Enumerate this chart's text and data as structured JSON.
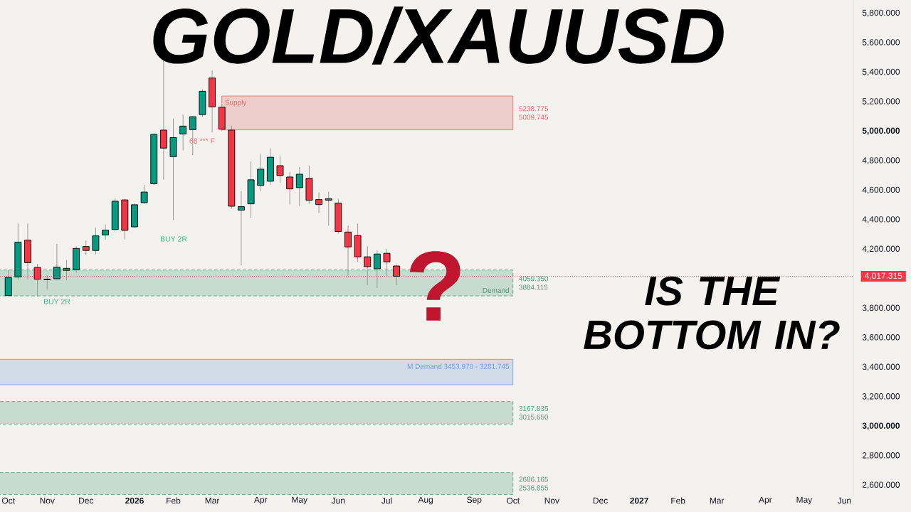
{
  "chart_data": {
    "type": "candlestick",
    "title": "GOLD/XAUUSD",
    "subtitle": "IS THE BOTTOM IN?",
    "x": [
      "2025-10-06",
      "2025-10-13",
      "2025-10-20",
      "2025-10-27",
      "2025-11-03",
      "2025-11-10",
      "2025-11-17",
      "2025-11-24",
      "2025-12-01",
      "2025-12-08",
      "2025-12-15",
      "2025-12-22",
      "2025-12-29",
      "2026-01-05",
      "2026-01-12",
      "2026-01-19",
      "2026-01-26",
      "2026-02-02",
      "2026-02-09",
      "2026-02-16",
      "2026-02-23",
      "2026-03-02",
      "2026-03-09",
      "2026-03-16",
      "2026-03-23",
      "2026-03-30",
      "2026-04-06",
      "2026-04-13",
      "2026-04-20",
      "2026-04-27",
      "2026-05-04",
      "2026-05-11",
      "2026-05-18",
      "2026-05-25",
      "2026-06-01",
      "2026-06-08",
      "2026-06-15",
      "2026-06-22",
      "2026-06-29",
      "2026-07-06",
      "2026-07-13"
    ],
    "ohlc": [
      [
        3886,
        4059,
        3884,
        4009
      ],
      [
        4012,
        4375,
        3992,
        4248
      ],
      [
        4262,
        4375,
        3997,
        4109
      ],
      [
        4077,
        4101,
        3881,
        3997
      ],
      [
        3997,
        4024,
        3925,
        3993
      ],
      [
        4000,
        4237,
        3997,
        4079
      ],
      [
        4071,
        4128,
        3992,
        4057
      ],
      [
        4061,
        4221,
        4040,
        4206
      ],
      [
        4219,
        4259,
        4160,
        4192
      ],
      [
        4192,
        4347,
        4165,
        4291
      ],
      [
        4297,
        4368,
        4264,
        4330
      ],
      [
        4334,
        4543,
        4326,
        4526
      ],
      [
        4535,
        4543,
        4267,
        4328
      ],
      [
        4352,
        4511,
        4345,
        4502
      ],
      [
        4516,
        4637,
        4508,
        4588
      ],
      [
        4644,
        4988,
        4637,
        4979
      ],
      [
        5008,
        5595,
        4672,
        4886
      ],
      [
        4828,
        5086,
        4398,
        4957
      ],
      [
        4982,
        5113,
        4871,
        5035
      ],
      [
        5011,
        5103,
        4839,
        5099
      ],
      [
        5113,
        5284,
        5097,
        5271
      ],
      [
        5361,
        5413,
        4993,
        5166
      ],
      [
        5163,
        5163,
        5001,
        5014
      ],
      [
        5008,
        5038,
        4475,
        4492
      ],
      [
        4465,
        4594,
        4091,
        4489
      ],
      [
        4508,
        4795,
        4412,
        4671
      ],
      [
        4633,
        4848,
        4594,
        4743
      ],
      [
        4661,
        4886,
        4637,
        4824
      ],
      [
        4767,
        4829,
        4652,
        4700
      ],
      [
        4690,
        4724,
        4503,
        4609
      ],
      [
        4618,
        4757,
        4494,
        4709
      ],
      [
        4681,
        4767,
        4508,
        4532
      ],
      [
        4537,
        4585,
        4446,
        4503
      ],
      [
        4542,
        4590,
        4360,
        4532
      ],
      [
        4513,
        4542,
        4307,
        4321
      ],
      [
        4317,
        4360,
        4020,
        4216
      ],
      [
        4293,
        4374,
        4115,
        4149
      ],
      [
        4149,
        4221,
        3957,
        4082
      ],
      [
        4068,
        4192,
        3938,
        4168
      ],
      [
        4173,
        4202,
        4015,
        4115
      ],
      [
        4087,
        4096,
        3957,
        4017.315
      ]
    ],
    "colors": [
      "#089981",
      "#089981",
      "#f23645",
      "#f23645",
      "#f23645",
      "#089981",
      "#f23645",
      "#089981",
      "#f23645",
      "#089981",
      "#089981",
      "#089981",
      "#f23645",
      "#089981",
      "#089981",
      "#089981",
      "#f23645",
      "#089981",
      "#089981",
      "#089981",
      "#089981",
      "#f23645",
      "#f23645",
      "#f23645",
      "#089981",
      "#089981",
      "#089981",
      "#089981",
      "#f23645",
      "#f23645",
      "#089981",
      "#f23645",
      "#f23645",
      "#f23645",
      "#f23645",
      "#f23645",
      "#f23645",
      "#f23645",
      "#089981",
      "#f23645",
      "#f23645"
    ],
    "xlim": [
      "2025-09-30",
      "2027-06-08"
    ],
    "xticks": [
      {
        "value": "2025-10-06",
        "label": "Oct"
      },
      {
        "value": "2025-11-03",
        "label": "Nov"
      },
      {
        "value": "2025-12-01",
        "label": "Dec"
      },
      {
        "value": "2026-01-05",
        "label": "2026"
      },
      {
        "value": "2026-02-02",
        "label": "Feb"
      },
      {
        "value": "2026-03-02",
        "label": "Mar"
      },
      {
        "value": "2026-04-06",
        "label": "Apr"
      },
      {
        "value": "2026-05-04",
        "label": "May"
      },
      {
        "value": "2026-06-01",
        "label": "Jun"
      },
      {
        "value": "2026-07-06",
        "label": "Jul"
      },
      {
        "value": "2026-08-03",
        "label": "Aug"
      },
      {
        "value": "2026-09-07",
        "label": "Sep"
      },
      {
        "value": "2026-10-05",
        "label": "Oct"
      },
      {
        "value": "2026-11-02",
        "label": "Nov"
      },
      {
        "value": "2026-12-07",
        "label": "Dec"
      },
      {
        "value": "2027-01-04",
        "label": "2027"
      },
      {
        "value": "2027-02-01",
        "label": "Feb"
      },
      {
        "value": "2027-03-01",
        "label": "Mar"
      },
      {
        "value": "2027-04-05",
        "label": "Apr"
      },
      {
        "value": "2027-05-03",
        "label": "May"
      },
      {
        "value": "2027-06-01",
        "label": "Jun"
      }
    ],
    "ylim": [
      2530,
      5890
    ],
    "yticks": [
      {
        "value": 5800,
        "label": "5,800.000"
      },
      {
        "value": 5600,
        "label": "5,600.000"
      },
      {
        "value": 5400,
        "label": "5,400.000"
      },
      {
        "value": 5200,
        "label": "5,200.000"
      },
      {
        "value": 5000,
        "label": "5,000.000"
      },
      {
        "value": 4800,
        "label": "4,800.000"
      },
      {
        "value": 4600,
        "label": "4,600.000"
      },
      {
        "value": 4400,
        "label": "4,400.000"
      },
      {
        "value": 4200,
        "label": "4,200.000"
      },
      {
        "value": 3800,
        "label": "3,800.000"
      },
      {
        "value": 3600,
        "label": "3,600.000"
      },
      {
        "value": 3400,
        "label": "3,400.000"
      },
      {
        "value": 3200,
        "label": "3,200.000"
      },
      {
        "value": 3000,
        "label": "3,000.000"
      },
      {
        "value": 2800,
        "label": "2,800.000"
      },
      {
        "value": 2600,
        "label": "2,600.000"
      }
    ],
    "bands": [
      {
        "axis": "y",
        "from": 5009.745,
        "to": 5238.775,
        "label": "Supply",
        "color": "#e06666"
      },
      {
        "axis": "y",
        "from": 3884.115,
        "to": 4059.35,
        "label": "Demand",
        "color": "#4c9a78"
      },
      {
        "axis": "y",
        "from": 3281.745,
        "to": 3453.97,
        "label": "M Demand  3453.970 - 3281.745",
        "color": "#6d9dd6"
      },
      {
        "axis": "y",
        "from": 3015.65,
        "to": 3167.835,
        "color": "#4c9a78"
      },
      {
        "axis": "y",
        "from": 2536.855,
        "to": 2686.165,
        "color": "#4c9a78"
      }
    ],
    "ref_lines": [
      {
        "axis": "y",
        "value": 4017.315,
        "label": "4,017.315",
        "color": "#f23645",
        "line_style": "dotted"
      }
    ],
    "annotations": [
      "?",
      "BUY 2R",
      "BUY 2R",
      "68 *** F",
      "5238.775",
      "5009.745",
      "4059.350",
      "3884.115",
      "3167.835",
      "3015.650",
      "2686.165",
      "2536.855"
    ]
  }
}
